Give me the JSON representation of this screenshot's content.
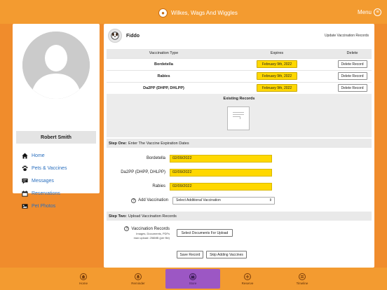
{
  "header": {
    "app_title": "Wilkes, Wags And Wiggles",
    "menu_label": "Menu"
  },
  "profile": {
    "name": "Robert Smith"
  },
  "nav": {
    "items": [
      {
        "label": "Home",
        "icon": "home-icon"
      },
      {
        "label": "Pets & Vaccines",
        "icon": "paw-icon"
      },
      {
        "label": "Messages",
        "icon": "message-icon"
      },
      {
        "label": "Reservations",
        "icon": "calendar-icon"
      },
      {
        "label": "Pet Photos",
        "icon": "photo-icon"
      }
    ]
  },
  "pet": {
    "name": "Fiddo"
  },
  "update_link": "Update Vaccination Records",
  "table": {
    "headers": {
      "type": "Vaccination Type",
      "expires": "Expires",
      "delete": "Delete"
    },
    "rows": [
      {
        "type": "Bordetella",
        "expires": "February 9th, 2022",
        "action": "Delete Record"
      },
      {
        "type": "Rabies",
        "expires": "February 9th, 2022",
        "action": "Delete Record"
      },
      {
        "type": "Da2PP (DHPP, DHLPP)",
        "expires": "February 9th, 2022",
        "action": "Delete Record"
      }
    ]
  },
  "existing_records": {
    "title": "Existing Records"
  },
  "step_one": {
    "bold": "Step One:",
    "text": "Enter The Vaccine Expiration Dates"
  },
  "fields": [
    {
      "label": "Bordetella",
      "value": "02/09/2022"
    },
    {
      "label": "Da2PP (DHPP, DHLPP)",
      "value": "02/09/2022"
    },
    {
      "label": "Rabies",
      "value": "02/09/2022"
    }
  ],
  "add_vaccination": {
    "help": "?",
    "label": "Add Vaccination",
    "selected": "Select Additional Vaccination"
  },
  "step_two": {
    "bold": "Step Two:",
    "text": "Upload Vaccination Records"
  },
  "upload": {
    "help": "?",
    "label": "Vaccination Records",
    "hint_1": "Images, Documents, PDFs",
    "hint_2": "max upload: 256MB (per file)",
    "button": "Select Documents For Upload"
  },
  "actions": {
    "save": "Save Record",
    "skip": "Skip Adding Vaccines"
  },
  "tabs": [
    {
      "label": "Home",
      "icon": "home-icon",
      "active": false
    },
    {
      "label": "Reminder",
      "icon": "bell-icon",
      "active": false
    },
    {
      "label": "Store",
      "icon": "store-icon",
      "active": true
    },
    {
      "label": "Reserve",
      "icon": "plus-icon",
      "active": false
    },
    {
      "label": "Timeline",
      "icon": "timeline-icon",
      "active": false
    }
  ],
  "colors": {
    "brand_orange": "#f39b30",
    "highlight_yellow": "#ffd800",
    "active_tab": "#9c57c4",
    "link_blue": "#2a6fbe"
  }
}
